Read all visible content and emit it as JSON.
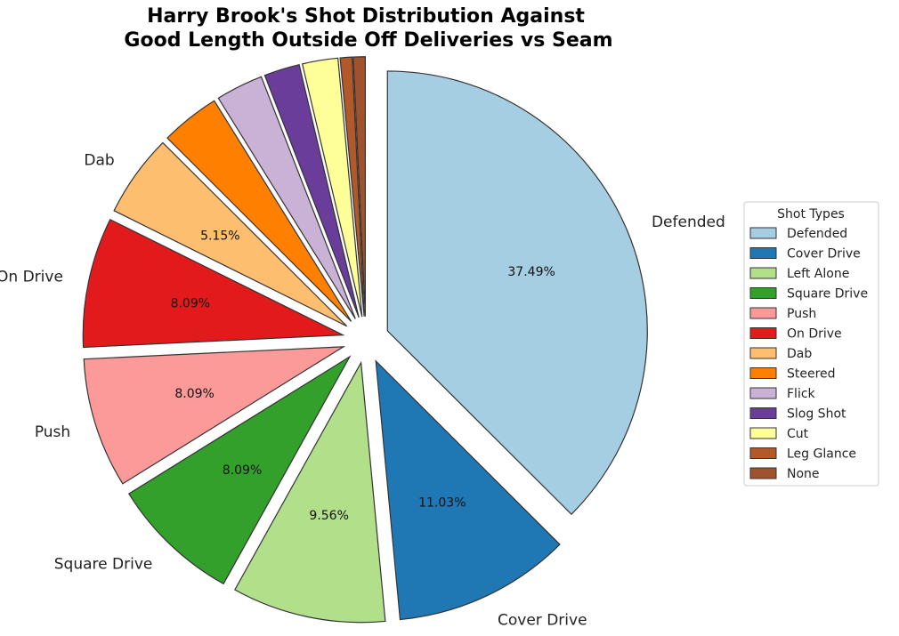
{
  "chart_data": {
    "type": "pie",
    "title_lines": [
      "Harry Brook's Shot Distribution Against",
      "Good Length Outside Off Deliveries vs Seam"
    ],
    "legend": {
      "title": "Shot Types",
      "placement": "right"
    },
    "start_angle_deg": 90,
    "direction": "clockwise",
    "slices": [
      {
        "label": "Defended",
        "value": 37.49,
        "pct_text": "37.49%",
        "color": "#a6cee3",
        "show_label": true
      },
      {
        "label": "Cover Drive",
        "value": 11.03,
        "pct_text": "11.03%",
        "color": "#1f78b4",
        "show_label": true
      },
      {
        "label": "Left Alone",
        "value": 9.56,
        "pct_text": "9.56%",
        "color": "#b2df8a",
        "show_label": true
      },
      {
        "label": "Square Drive",
        "value": 8.09,
        "pct_text": "8.09%",
        "color": "#33a02c",
        "show_label": true
      },
      {
        "label": "Push",
        "value": 8.09,
        "pct_text": "8.09%",
        "color": "#fb9a99",
        "show_label": true
      },
      {
        "label": "On Drive",
        "value": 8.09,
        "pct_text": "8.09%",
        "color": "#e31a1c",
        "show_label": true
      },
      {
        "label": "Dab",
        "value": 5.15,
        "pct_text": "5.15%",
        "color": "#fdbf6f",
        "show_label": true
      },
      {
        "label": "Steered",
        "value": 3.68,
        "pct_text": "",
        "color": "#ff7f00",
        "show_label": false
      },
      {
        "label": "Flick",
        "value": 2.94,
        "pct_text": "",
        "color": "#cab2d6",
        "show_label": false
      },
      {
        "label": "Slog Shot",
        "value": 2.21,
        "pct_text": "",
        "color": "#6a3d9a",
        "show_label": false
      },
      {
        "label": "Cut",
        "value": 2.21,
        "pct_text": "",
        "color": "#ffff99",
        "show_label": false
      },
      {
        "label": "Leg Glance",
        "value": 0.74,
        "pct_text": "",
        "color": "#b15928",
        "show_label": false
      },
      {
        "label": "None",
        "value": 0.74,
        "pct_text": "",
        "color": "#a0522d",
        "show_label": false
      }
    ]
  }
}
